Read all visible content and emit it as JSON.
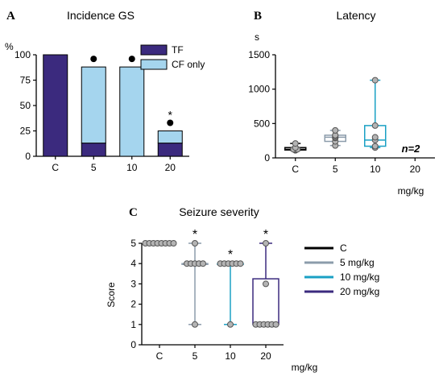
{
  "colors": {
    "tf": "#3b2a7e",
    "cf": "#a5d5ee",
    "axis": "#000000",
    "c": "#000000",
    "dose5": "#8c9cab",
    "dose10": "#1aa0c4",
    "dose20": "#3b2a7e",
    "point_fill": "#b4b4b4"
  },
  "chart_data": [
    {
      "type": "bar",
      "panel": "A",
      "title": "Incidence GS",
      "ylabel": "%",
      "ylim": [
        0,
        100
      ],
      "yticks": [
        "0",
        "25",
        "50",
        "75",
        "100"
      ],
      "categories": [
        "C",
        "5",
        "10",
        "20"
      ],
      "stacked": true,
      "series": [
        {
          "name": "TF",
          "values": [
            100,
            13,
            0,
            13
          ]
        },
        {
          "name": "CF only",
          "values": [
            0,
            75,
            88,
            12
          ]
        }
      ],
      "annotations": [
        {
          "category": "5",
          "marks": [
            "●"
          ]
        },
        {
          "category": "10",
          "marks": [
            "●"
          ]
        },
        {
          "category": "20",
          "marks": [
            "*",
            "●"
          ]
        }
      ],
      "legend": "top-right"
    },
    {
      "type": "box",
      "panel": "B",
      "title": "Latency",
      "ylabel": "s",
      "xlabel": "mg/kg",
      "ylim": [
        0,
        1500
      ],
      "yticks": [
        "0",
        "500",
        "1000",
        "1500"
      ],
      "categories": [
        "C",
        "5",
        "10",
        "20"
      ],
      "boxes": [
        {
          "category": "C",
          "min": 110,
          "q1": 115,
          "median": 125,
          "q3": 150,
          "max": 210,
          "points": [
            110,
            115,
            120,
            125,
            125,
            150,
            210
          ]
        },
        {
          "category": "5",
          "min": 180,
          "q1": 240,
          "median": 300,
          "q3": 330,
          "max": 400,
          "points": [
            180,
            240,
            290,
            300,
            320,
            330,
            400
          ]
        },
        {
          "category": "10",
          "min": 150,
          "q1": 170,
          "median": 260,
          "q3": 470,
          "max": 1130,
          "points": [
            150,
            170,
            260,
            300,
            470,
            1130
          ]
        }
      ],
      "annotation": {
        "category": "20",
        "text": "n=2"
      }
    },
    {
      "type": "box",
      "panel": "C",
      "title": "Seizure severity",
      "ylabel": "Score",
      "xlabel": "mg/kg",
      "ylim": [
        0,
        5
      ],
      "yticks": [
        "0",
        "1",
        "2",
        "3",
        "4",
        "5"
      ],
      "categories": [
        "C",
        "5",
        "10",
        "20"
      ],
      "boxes": [
        {
          "category": "C",
          "min": 5,
          "q1": 5,
          "median": 5,
          "q3": 5,
          "max": 5,
          "points": [
            5,
            5,
            5,
            5,
            5,
            5,
            5,
            5
          ]
        },
        {
          "category": "5",
          "min": 1,
          "q1": 4,
          "median": 4,
          "q3": 4,
          "max": 5,
          "points": [
            5,
            4,
            4,
            4,
            4,
            4,
            1
          ]
        },
        {
          "category": "10",
          "min": 1,
          "q1": 4,
          "median": 4,
          "q3": 4,
          "max": 4,
          "points": [
            4,
            4,
            4,
            4,
            4,
            4,
            1
          ]
        },
        {
          "category": "20",
          "min": 1,
          "q1": 1,
          "median": 1,
          "q3": 3.25,
          "max": 5,
          "points": [
            5,
            3,
            1,
            1,
            1,
            1,
            1,
            1
          ]
        }
      ],
      "significance": [
        {
          "category": "5",
          "text": "*"
        },
        {
          "category": "10",
          "text": "*"
        },
        {
          "category": "20",
          "text": "*"
        }
      ],
      "legend": {
        "position": "right",
        "items": [
          {
            "label": "C",
            "color_key": "c"
          },
          {
            "label": "5 mg/kg",
            "color_key": "dose5"
          },
          {
            "label": "10 mg/kg",
            "color_key": "dose10"
          },
          {
            "label": "20 mg/kg",
            "color_key": "dose20"
          }
        ]
      }
    }
  ]
}
